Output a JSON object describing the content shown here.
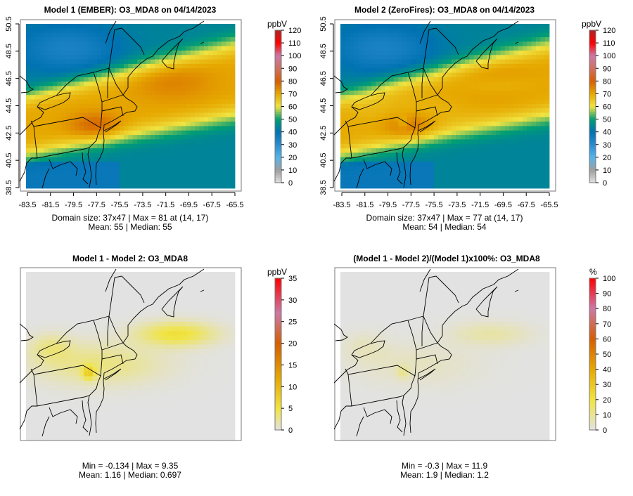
{
  "chart_data": [
    {
      "type": "heatmap",
      "title": "Model 1 (EMBER): O3_MDA8 on 04/14/2023",
      "units": "ppbV",
      "range": [
        0,
        120
      ],
      "colorbar_ticks": [
        0,
        10,
        20,
        30,
        40,
        50,
        60,
        70,
        80,
        90,
        100,
        110,
        120
      ],
      "colorscale": [
        [
          0,
          "#e2e2e2"
        ],
        [
          10,
          "#9e9e9e"
        ],
        [
          20,
          "#56b4e9"
        ],
        [
          30,
          "#2b8cd0"
        ],
        [
          40,
          "#0072b2"
        ],
        [
          50,
          "#009e73"
        ],
        [
          60,
          "#f0e442"
        ],
        [
          70,
          "#e6a800"
        ],
        [
          80,
          "#d55e00"
        ],
        [
          90,
          "#d07060"
        ],
        [
          100,
          "#cc79a7"
        ],
        [
          110,
          "#ff0000"
        ],
        [
          120,
          "#b22222"
        ]
      ],
      "xticks": [
        "-83.5",
        "-81.5",
        "-79.5",
        "-77.5",
        "-75.5",
        "-73.5",
        "-71.5",
        "-69.5",
        "-67.5",
        "-65.5"
      ],
      "yticks": [
        "50.5",
        "48.5",
        "46.5",
        "44.5",
        "42.5",
        "40.5",
        "38.5"
      ],
      "domain_size": "37x47",
      "max": 81,
      "max_at": "(14, 17)",
      "mean": 55,
      "median": 55,
      "stat_line1": "Domain size: 37x47 | Max = 81 at (14, 17)",
      "stat_line2": "Mean: 55 |  Median: 55"
    },
    {
      "type": "heatmap",
      "title": "Model 2 (ZeroFires): O3_MDA8 on 04/14/2023",
      "units": "ppbV",
      "range": [
        0,
        120
      ],
      "colorbar_ticks": [
        0,
        10,
        20,
        30,
        40,
        50,
        60,
        70,
        80,
        90,
        100,
        110,
        120
      ],
      "colorscale": [
        [
          0,
          "#e2e2e2"
        ],
        [
          10,
          "#9e9e9e"
        ],
        [
          20,
          "#56b4e9"
        ],
        [
          30,
          "#2b8cd0"
        ],
        [
          40,
          "#0072b2"
        ],
        [
          50,
          "#009e73"
        ],
        [
          60,
          "#f0e442"
        ],
        [
          70,
          "#e6a800"
        ],
        [
          80,
          "#d55e00"
        ],
        [
          90,
          "#d07060"
        ],
        [
          100,
          "#cc79a7"
        ],
        [
          110,
          "#ff0000"
        ],
        [
          120,
          "#b22222"
        ]
      ],
      "xticks": [
        "-83.5",
        "-81.5",
        "-79.5",
        "-77.5",
        "-75.5",
        "-73.5",
        "-71.5",
        "-69.5",
        "-67.5",
        "-65.5"
      ],
      "yticks": [
        "50.5",
        "48.5",
        "46.5",
        "44.5",
        "42.5",
        "40.5",
        "38.5"
      ],
      "domain_size": "37x47",
      "max": 77,
      "max_at": "(14, 17)",
      "mean": 54,
      "median": 54,
      "stat_line1": "Domain size: 37x47 | Max = 77 at (14, 17)",
      "stat_line2": "Mean: 54 |  Median: 54"
    },
    {
      "type": "heatmap",
      "title": "Model 1 - Model 2: O3_MDA8",
      "units": "ppbV",
      "range": [
        0,
        35
      ],
      "colorbar_ticks": [
        0,
        5,
        10,
        15,
        20,
        25,
        30,
        35
      ],
      "colorscale": [
        [
          0,
          "#e2e2e2"
        ],
        [
          5,
          "#f0e442"
        ],
        [
          12,
          "#e6a800"
        ],
        [
          20,
          "#d55e00"
        ],
        [
          27,
          "#cc79a7"
        ],
        [
          35,
          "#ff0000"
        ]
      ],
      "min": -0.134,
      "max": 9.35,
      "mean": 1.16,
      "median": 0.697,
      "stat_line1": "Min = -0.134 | Max = 9.35",
      "stat_line2": "Mean: 1.16 |  Median: 0.697"
    },
    {
      "type": "heatmap",
      "title": "(Model 1 - Model 2)/(Model 1)x100%: O3_MDA8",
      "units": "%",
      "range": [
        0,
        100
      ],
      "colorbar_ticks": [
        0,
        10,
        20,
        30,
        40,
        50,
        60,
        70,
        80,
        90,
        100
      ],
      "colorscale": [
        [
          0,
          "#e2e2e2"
        ],
        [
          20,
          "#f0e442"
        ],
        [
          40,
          "#e6a800"
        ],
        [
          60,
          "#d55e00"
        ],
        [
          80,
          "#cc79a7"
        ],
        [
          100,
          "#ff0000"
        ]
      ],
      "min": -0.3,
      "max": 11.9,
      "mean": 1.9,
      "median": 1.2,
      "stat_line1": "Min = -0.3 | Max = 11.9",
      "stat_line2": "Mean: 1.9 |  Median: 1.2"
    }
  ]
}
